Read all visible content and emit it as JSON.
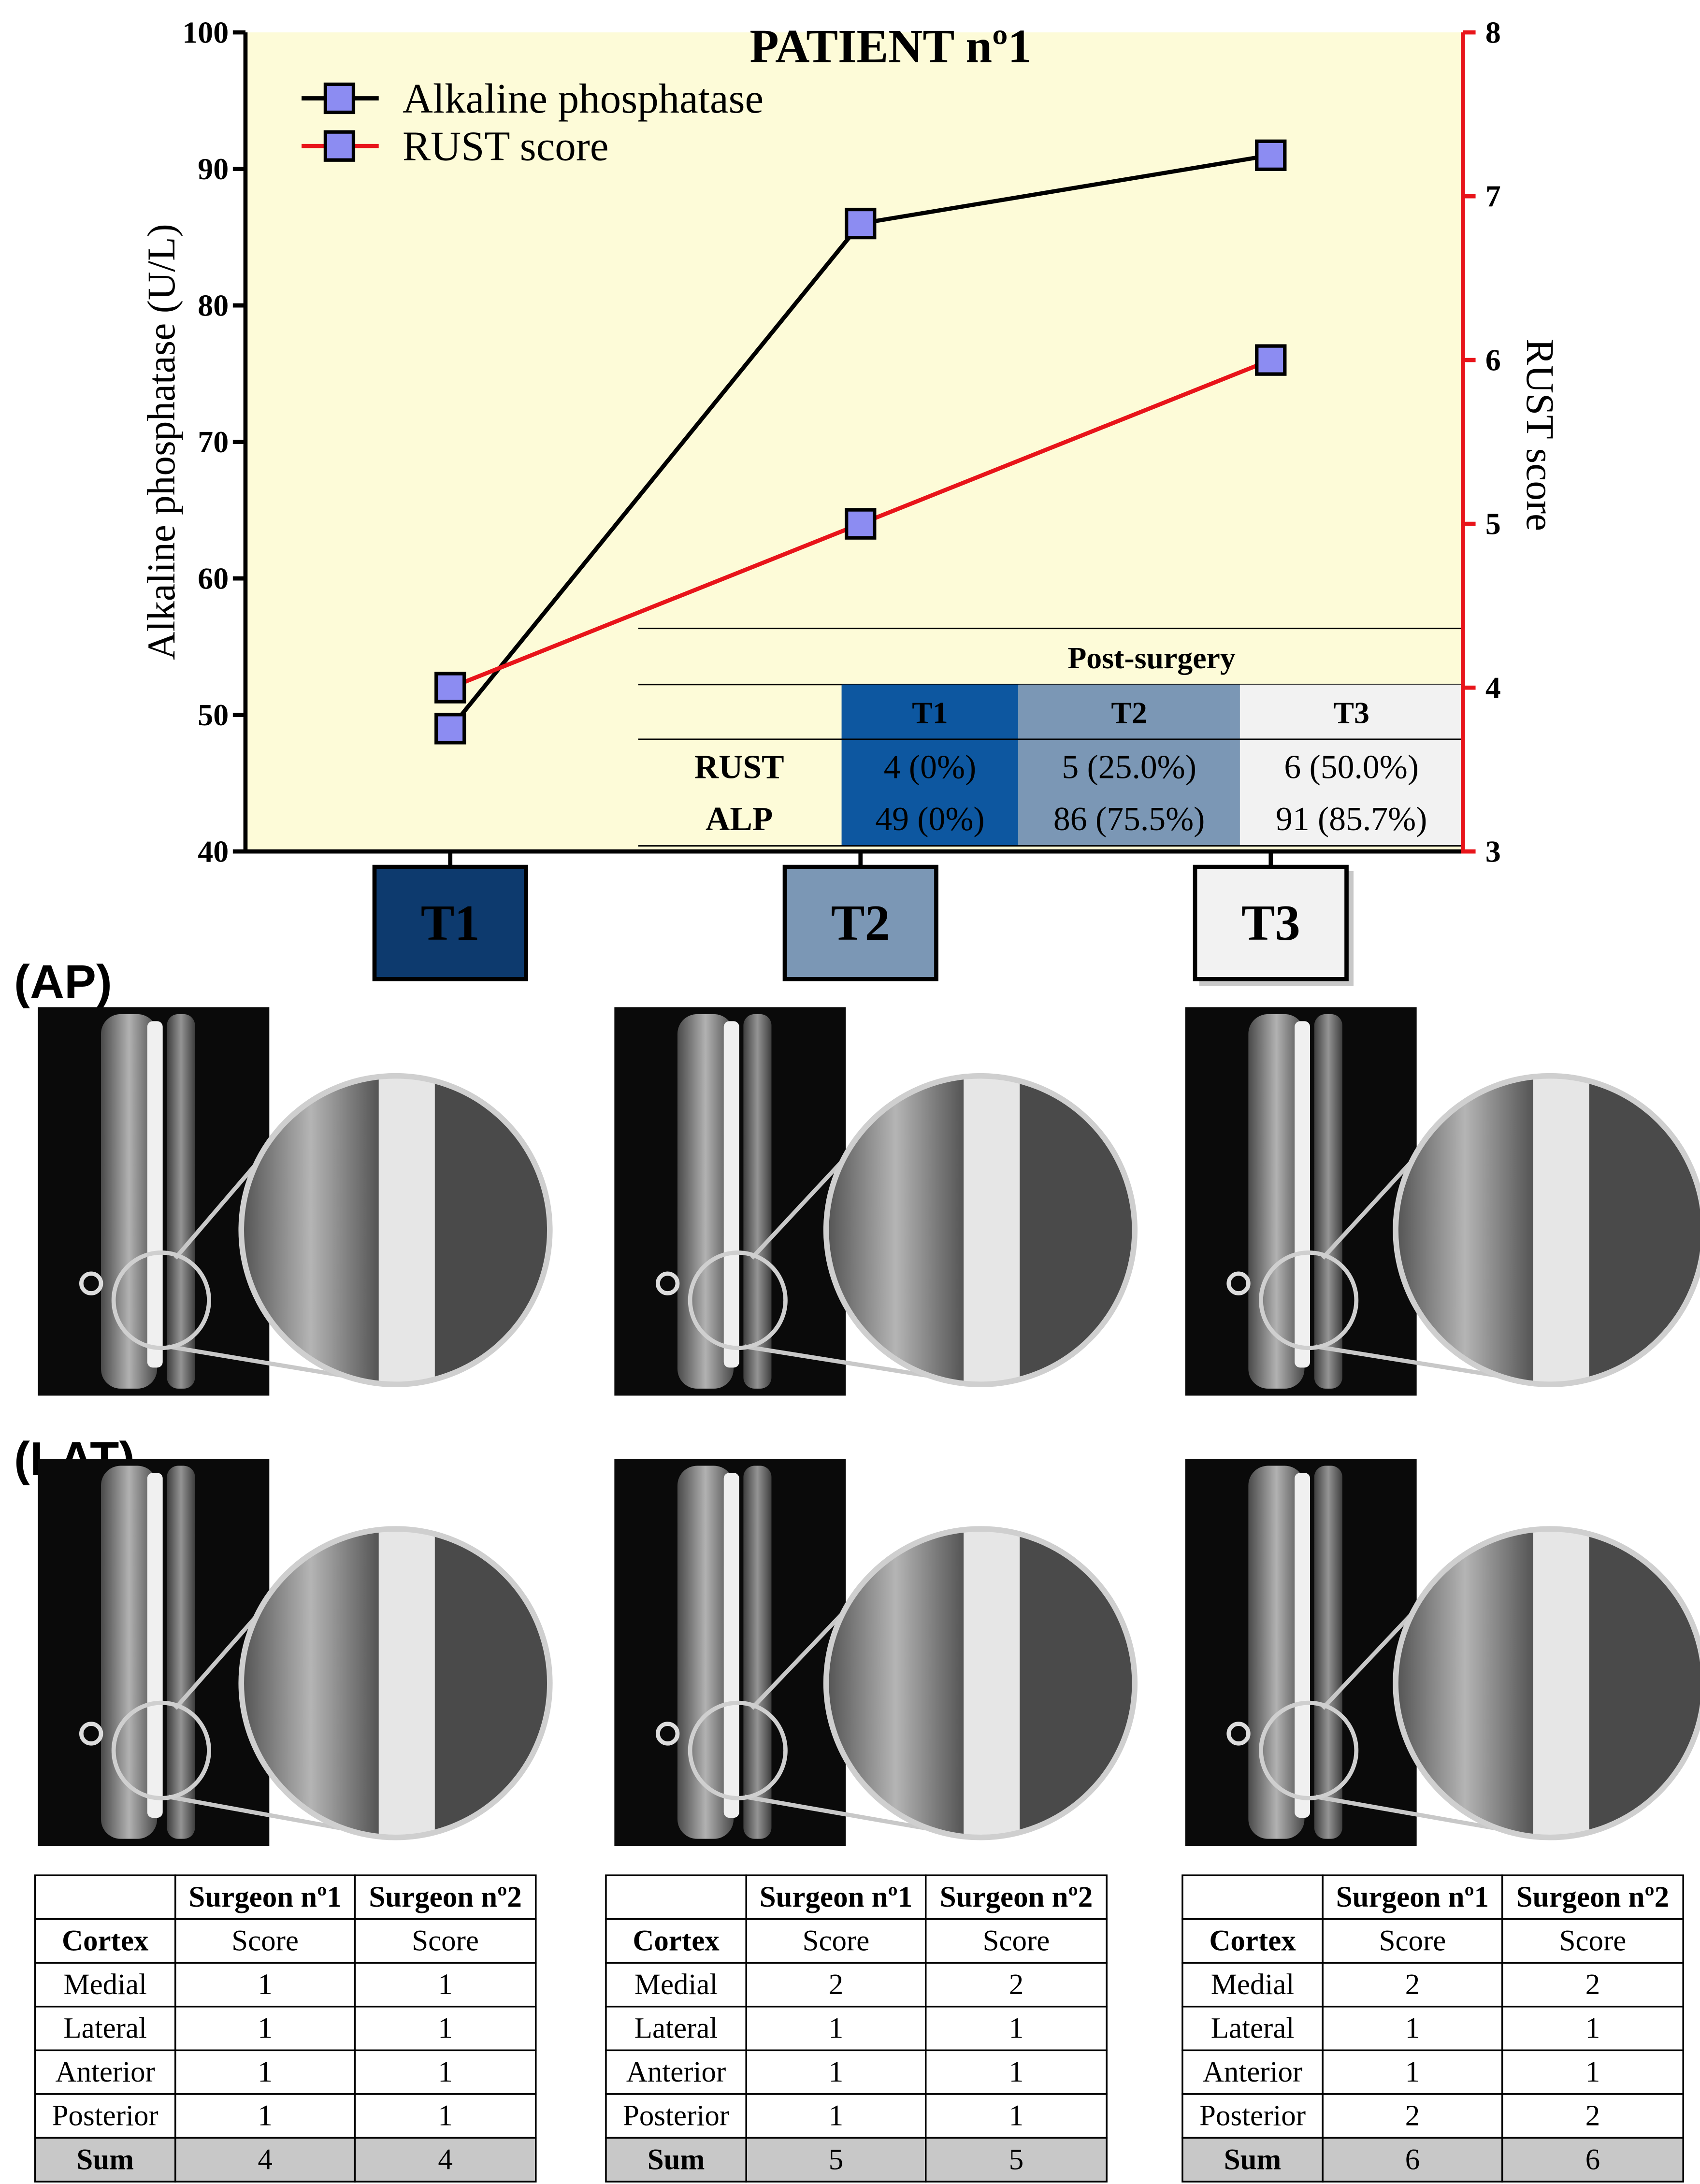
{
  "chart_data": {
    "type": "line",
    "title": "PATIENT nº1",
    "categories": [
      "T1",
      "T2",
      "T3"
    ],
    "series": [
      {
        "name": "Alkaline phosphatase",
        "color": "#000000",
        "values": [
          49,
          86,
          91
        ]
      },
      {
        "name": "RUST score",
        "color": "#e8141a",
        "values": [
          4,
          5,
          6
        ],
        "axis": "y2"
      }
    ],
    "marker_color": "#8c8cf2",
    "ylabel": "Alkaline phosphatase (U/L)",
    "y2label": "RUST score",
    "ylim": [
      40,
      100
    ],
    "yticks": [
      40,
      50,
      60,
      70,
      80,
      90,
      100
    ],
    "y2lim": [
      3,
      8
    ],
    "y2ticks": [
      3,
      4,
      5,
      6,
      7,
      8
    ],
    "y2color": "#e8141a",
    "background": "#fdfbd8",
    "grid": false,
    "legend": "upper left"
  },
  "inset_table": {
    "title": "Post-surgery",
    "columns": [
      "T1",
      "T2",
      "T3"
    ],
    "rows": [
      {
        "label": "RUST",
        "cells": [
          "4 (0%)",
          "5 (25.0%)",
          "6 (50.0%)"
        ]
      },
      {
        "label": "ALP",
        "cells": [
          "49 (0%)",
          "86 (75.5%)",
          "91 (85.7%)"
        ]
      }
    ]
  },
  "views": [
    "(AP)",
    "(LAT)"
  ],
  "score_tables": [
    {
      "header": [
        "Surgeon nº1",
        "Surgeon nº2"
      ],
      "subheader": [
        "Cortex",
        "Score",
        "Score"
      ],
      "rows": [
        [
          "Medial",
          "1",
          "1"
        ],
        [
          "Lateral",
          "1",
          "1"
        ],
        [
          "Anterior",
          "1",
          "1"
        ],
        [
          "Posterior",
          "1",
          "1"
        ],
        [
          "Sum",
          "4",
          "4"
        ]
      ]
    },
    {
      "header": [
        "Surgeon nº1",
        "Surgeon nº2"
      ],
      "subheader": [
        "Cortex",
        "Score",
        "Score"
      ],
      "rows": [
        [
          "Medial",
          "2",
          "2"
        ],
        [
          "Lateral",
          "1",
          "1"
        ],
        [
          "Anterior",
          "1",
          "1"
        ],
        [
          "Posterior",
          "1",
          "1"
        ],
        [
          "Sum",
          "5",
          "5"
        ]
      ]
    },
    {
      "header": [
        "Surgeon nº1",
        "Surgeon nº2"
      ],
      "subheader": [
        "Cortex",
        "Score",
        "Score"
      ],
      "rows": [
        [
          "Medial",
          "2",
          "2"
        ],
        [
          "Lateral",
          "1",
          "1"
        ],
        [
          "Anterior",
          "1",
          "1"
        ],
        [
          "Posterior",
          "2",
          "2"
        ],
        [
          "Sum",
          "6",
          "6"
        ]
      ]
    }
  ]
}
